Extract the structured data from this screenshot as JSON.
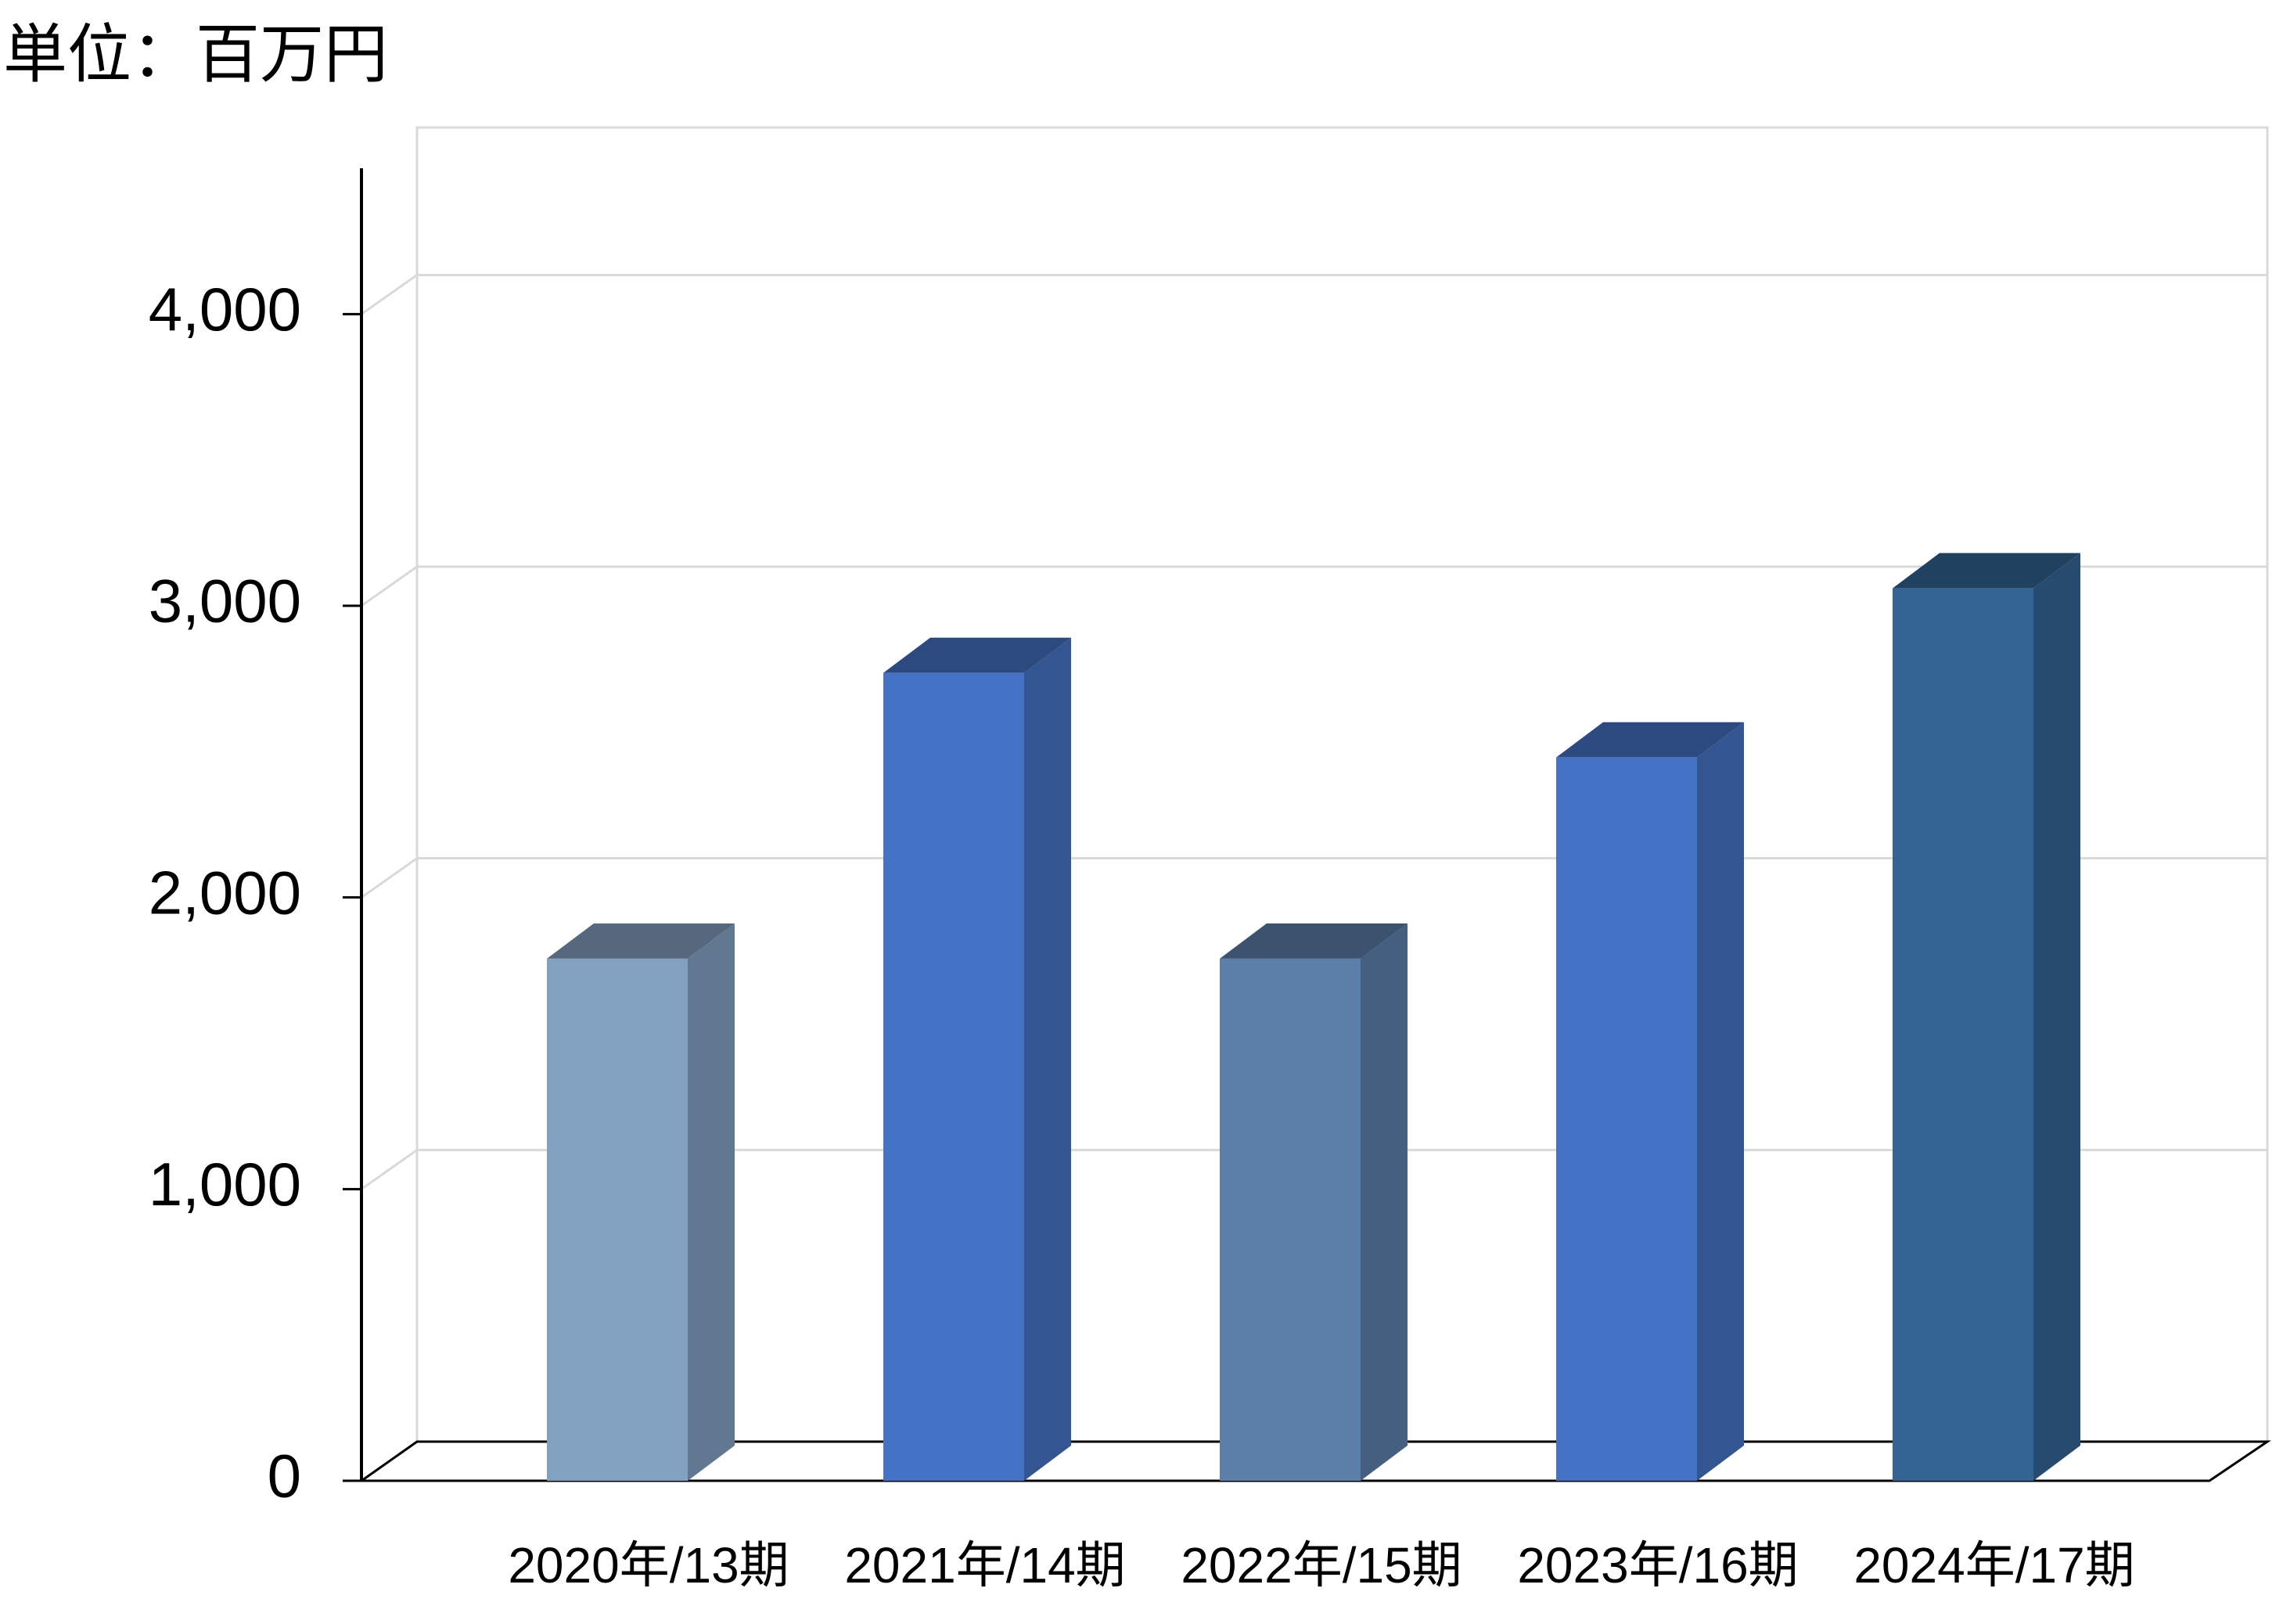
{
  "chart_data": {
    "type": "bar3d",
    "title": "単位：百万円",
    "categories": [
      "2020年/13期",
      "2021年/14期",
      "2022年/15期",
      "2023年/16期",
      "2024年/17期"
    ],
    "values": [
      1790,
      2770,
      1790,
      2480,
      3060
    ],
    "colors": [
      "#82a0c0",
      "#4472c4",
      "#5b7fa9",
      "#4472c4",
      "#326494"
    ],
    "ylim": [
      0,
      4500
    ],
    "yticks": [
      0,
      {
        "value": 1000,
        "label": "1,000"
      },
      {
        "value": 2000,
        "label": "2,000"
      },
      {
        "value": 3000,
        "label": "3,000"
      },
      {
        "value": 4000,
        "label": "4,000"
      }
    ],
    "grid": true
  }
}
